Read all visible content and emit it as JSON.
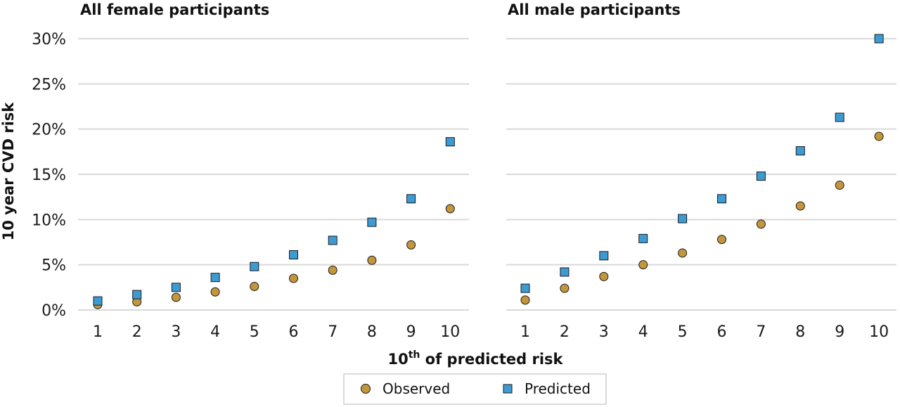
{
  "chart_data": [
    {
      "type": "scatter",
      "title": "All female participants",
      "categories": [
        "1",
        "2",
        "3",
        "4",
        "5",
        "6",
        "7",
        "8",
        "9",
        "10"
      ],
      "ylim": [
        0,
        30
      ],
      "ytick_labels": [
        "0%",
        "5%",
        "10%",
        "15%",
        "20%",
        "25%",
        "30%"
      ],
      "series": [
        {
          "name": "Observed",
          "values": [
            0.6,
            0.9,
            1.4,
            2.0,
            2.6,
            3.5,
            4.4,
            5.5,
            7.2,
            11.2
          ]
        },
        {
          "name": "Predicted",
          "values": [
            1.0,
            1.7,
            2.5,
            3.6,
            4.8,
            6.1,
            7.7,
            9.7,
            12.3,
            18.6
          ]
        }
      ]
    },
    {
      "type": "scatter",
      "title": "All male participants",
      "categories": [
        "1",
        "2",
        "3",
        "4",
        "5",
        "6",
        "7",
        "8",
        "9",
        "10"
      ],
      "ylim": [
        0,
        30
      ],
      "series": [
        {
          "name": "Observed",
          "values": [
            1.1,
            2.4,
            3.7,
            5.0,
            6.3,
            7.8,
            9.5,
            11.5,
            13.8,
            19.2
          ]
        },
        {
          "name": "Predicted",
          "values": [
            2.4,
            4.2,
            6.0,
            7.9,
            10.1,
            12.3,
            14.8,
            17.6,
            21.3,
            30.0
          ]
        }
      ]
    }
  ],
  "axes": {
    "ylabel": "10 year CVD risk",
    "xlabel_sup": "th",
    "xlabel_base": "10",
    "xlabel_rest": " of predicted risk"
  },
  "legend": {
    "observed_label": "Observed",
    "predicted_label": "Predicted",
    "placement": "bottom-center"
  },
  "colors": {
    "observed": "#c4963c",
    "predicted": "#3d9bd4",
    "grid": "#d9d9d9",
    "marker_edge": "#1a1a1a"
  },
  "grid": true
}
